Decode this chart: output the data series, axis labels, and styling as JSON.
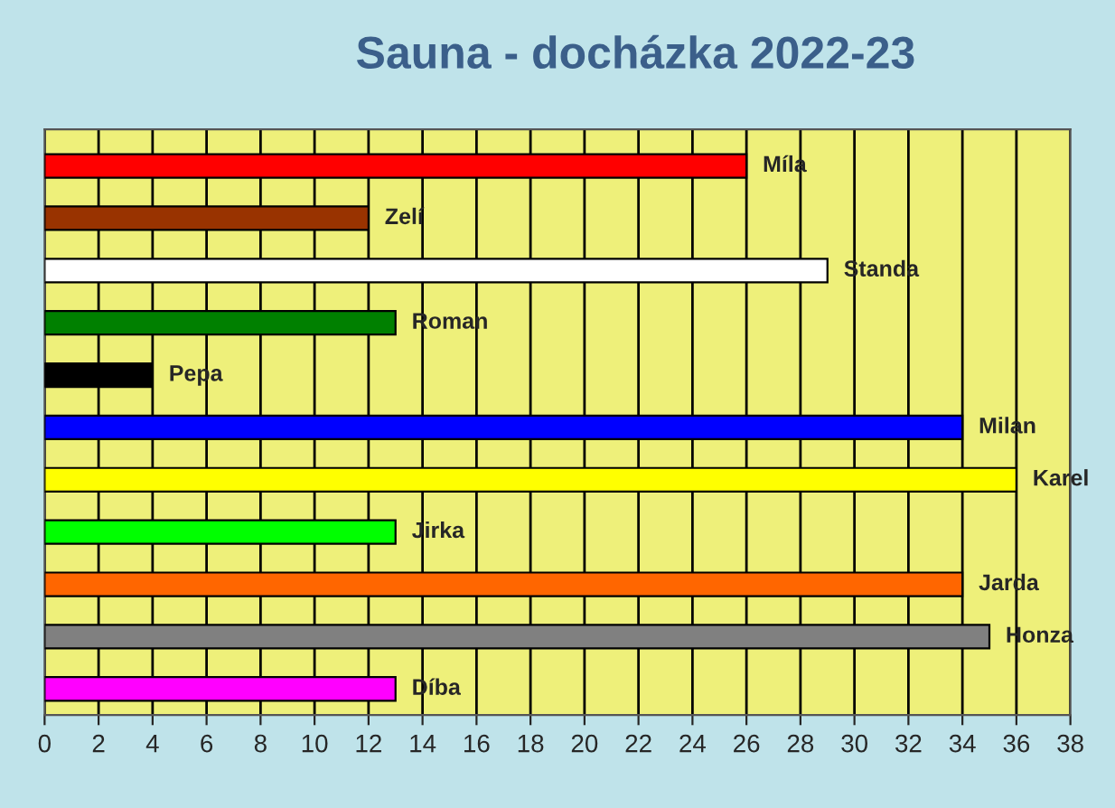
{
  "chart_data": {
    "type": "bar",
    "orientation": "horizontal",
    "title": "Sauna - docházka 2022-23",
    "categories": [
      "Míla",
      "Zelí",
      "Standa",
      "Roman",
      "Pepa",
      "Milan",
      "Karel",
      "Jirka",
      "Jarda",
      "Honza",
      "Díba"
    ],
    "values": [
      26,
      12,
      29,
      13,
      4,
      34,
      36,
      13,
      34,
      35,
      13
    ],
    "colors": [
      "#ff0000",
      "#993300",
      "#ffffff",
      "#008000",
      "#000000",
      "#0000ff",
      "#ffff00",
      "#00ff00",
      "#ff6600",
      "#808080",
      "#ff00ff"
    ],
    "xlim": [
      0,
      38
    ],
    "xticks": [
      0,
      2,
      4,
      6,
      8,
      10,
      12,
      14,
      16,
      18,
      20,
      22,
      24,
      26,
      28,
      30,
      32,
      34,
      36,
      38
    ],
    "grid": "x",
    "tick_labels": "x",
    "legend": false
  }
}
